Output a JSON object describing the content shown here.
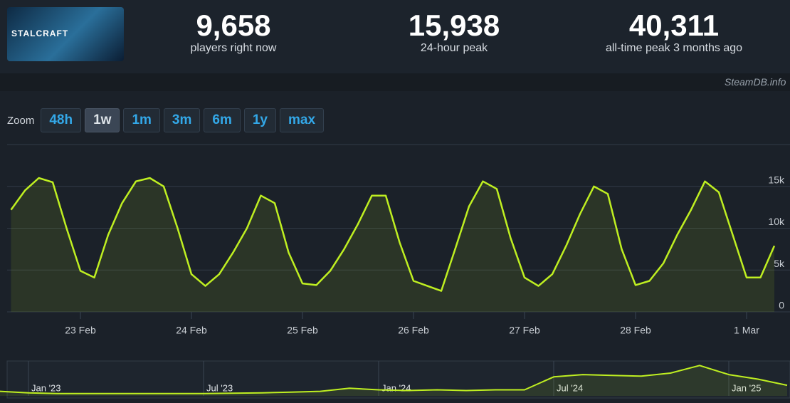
{
  "header": {
    "logo_text": "STALCRAFT",
    "stats": [
      {
        "value": "9,658",
        "label": "players right now"
      },
      {
        "value": "15,938",
        "label": "24-hour peak"
      },
      {
        "value": "40,311",
        "label": "all-time peak 3 months ago"
      }
    ]
  },
  "watermark": "SteamDB.info",
  "zoom": {
    "label": "Zoom",
    "buttons": [
      "48h",
      "1w",
      "1m",
      "3m",
      "6m",
      "1y",
      "max"
    ],
    "active": "1w"
  },
  "chart_data": [
    {
      "type": "area",
      "color": "#bfef21",
      "grid": true,
      "categories": [
        null,
        null,
        null,
        null,
        null,
        "23 Feb",
        null,
        null,
        null,
        null,
        null,
        null,
        null,
        "24 Feb",
        null,
        null,
        null,
        null,
        null,
        null,
        null,
        "25 Feb",
        null,
        null,
        null,
        null,
        null,
        null,
        null,
        "26 Feb",
        null,
        null,
        null,
        null,
        null,
        null,
        null,
        "27 Feb",
        null,
        null,
        null,
        null,
        null,
        null,
        null,
        "28 Feb",
        null,
        null,
        null,
        null,
        null,
        null,
        null,
        "1 Mar",
        null,
        null
      ],
      "values": [
        12200,
        14500,
        16000,
        15500,
        10000,
        4900,
        4100,
        9200,
        13000,
        15600,
        16000,
        15000,
        10000,
        4500,
        3100,
        4500,
        7100,
        10000,
        13900,
        13000,
        7100,
        3400,
        3200,
        4900,
        7500,
        10500,
        13900,
        13900,
        8300,
        3700,
        3100,
        2500,
        7500,
        12600,
        15600,
        14700,
        8800,
        4100,
        3100,
        4500,
        7900,
        11700,
        15000,
        14100,
        7500,
        3200,
        3700,
        5800,
        9200,
        12200,
        15600,
        14300,
        9200,
        4100,
        4100,
        7900
      ],
      "ylim": [
        0,
        20000
      ],
      "yticks": [
        0,
        {
          "value": 5000,
          "label": "5k"
        },
        {
          "value": 10000,
          "label": "10k"
        },
        {
          "value": 15000,
          "label": "15k"
        }
      ]
    },
    {
      "type": "area",
      "color": "#bfef21",
      "categories": [
        null,
        "Jan '23",
        null,
        null,
        null,
        null,
        null,
        "Jul '23",
        null,
        null,
        null,
        null,
        null,
        "Jan '24",
        null,
        null,
        null,
        null,
        null,
        "Jul '24",
        null,
        null,
        null,
        null,
        null,
        "Jan '25",
        null,
        null
      ],
      "values": [
        6000,
        4000,
        3000,
        3000,
        3000,
        3000,
        3000,
        3000,
        3500,
        4000,
        5000,
        6000,
        10000,
        8000,
        7000,
        8000,
        7000,
        8000,
        8000,
        25000,
        28000,
        27000,
        26000,
        30000,
        40000,
        28000,
        22000,
        14000
      ],
      "ylim": [
        0,
        45000
      ]
    }
  ]
}
